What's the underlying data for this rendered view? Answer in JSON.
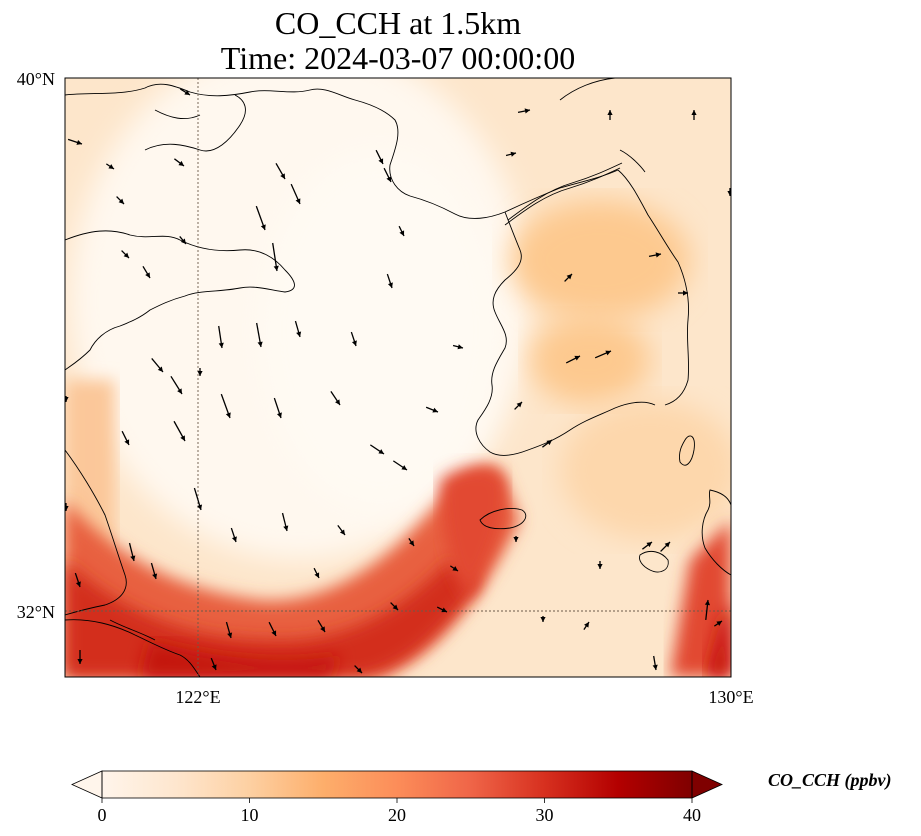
{
  "title_line1": "CO_CCH at 1.5km",
  "title_line2": "Time: 2024-03-07 00:00:00",
  "lat_ticks": [
    "40°N",
    "32°N"
  ],
  "lon_ticks": [
    "122°E",
    "130°E"
  ],
  "colorbar": {
    "label": "CO_CCH (ppbv)",
    "ticks": [
      "0",
      "10",
      "20",
      "30",
      "40"
    ],
    "colormap": [
      "#fff5eb",
      "#fee6ce",
      "#fdd0a2",
      "#fdae6b",
      "#fd8d3c",
      "#f16913",
      "#d94801",
      "#a63603",
      "#7f2704"
    ]
  },
  "map_colors": {
    "background": "#fff3e4",
    "low": "#fff8ef",
    "mid": "#fdd6a8",
    "high": "#e0452a",
    "peak": "#c8170d",
    "coastline": "#000000"
  }
}
